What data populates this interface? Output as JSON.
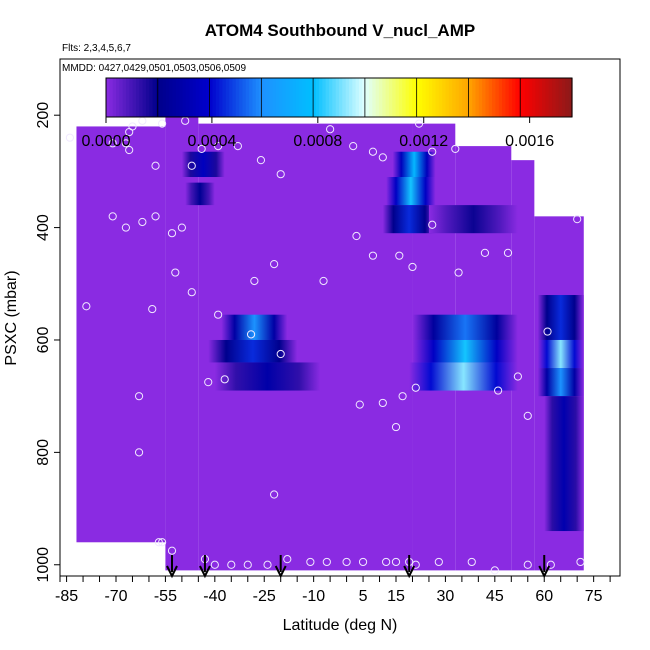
{
  "chart_data": {
    "type": "heatmap",
    "title": "ATOM4 Southbound V_nucl_AMP",
    "flights_note": "Flts: 2,3,4,5,6,7",
    "dates_note": "MMDD: 0427,0429,0501,0503,0506,0509",
    "xlabel": "Latitude (deg N)",
    "ylabel": "PSXC (mbar)",
    "xlim": [
      -87,
      83
    ],
    "ylim": [
      1020,
      100
    ],
    "x_ticks": [
      -85,
      -70,
      -55,
      -40,
      -25,
      -10,
      5,
      15,
      30,
      45,
      60,
      75
    ],
    "x_minor_ticks": [
      -87,
      -80,
      -75,
      -65,
      -60,
      -50,
      -45,
      -35,
      -30,
      -20,
      -15,
      -5,
      0,
      10,
      20,
      25,
      35,
      40,
      50,
      55,
      65,
      70,
      80
    ],
    "y_ticks": [
      200,
      400,
      600,
      800,
      1000
    ],
    "colorbar": {
      "range": [
        0,
        0.00176
      ],
      "tick_values": [
        0.0,
        0.0004,
        0.0008,
        0.0012,
        0.0016
      ],
      "tick_labels": [
        "0.0000",
        "0.0004",
        "0.0008",
        "0.0012",
        "0.0016"
      ],
      "colors": [
        "#8a2be2",
        "#00008b",
        "#0000cd",
        "#1e90ff",
        "#00bfff",
        "#e0ffff",
        "#ffff00",
        "#ffa500",
        "#ff0000",
        "#8b1a1a"
      ]
    },
    "background_level": 0.0,
    "coverage": [
      {
        "lat0": -82,
        "lat1": -55,
        "p0": 220,
        "p1": 960
      },
      {
        "lat0": -55,
        "lat1": -45,
        "p0": 170,
        "p1": 1010
      },
      {
        "lat0": -45,
        "lat1": 20,
        "p0": 215,
        "p1": 1010
      },
      {
        "lat0": 20,
        "lat1": 33,
        "p0": 215,
        "p1": 1010
      },
      {
        "lat0": 33,
        "lat1": 50,
        "p0": 255,
        "p1": 1010
      },
      {
        "lat0": 50,
        "lat1": 57,
        "p0": 280,
        "p1": 1010
      },
      {
        "lat0": 57,
        "lat1": 72,
        "p0": 380,
        "p1": 1010
      }
    ],
    "features": [
      {
        "lat": [
          -50,
          -37
        ],
        "p": [
          265,
          310
        ],
        "value": 0.00035
      },
      {
        "lat": [
          -49,
          -40
        ],
        "p": [
          320,
          360
        ],
        "value": 0.00022
      },
      {
        "lat": [
          -38,
          -18
        ],
        "p": [
          555,
          600
        ],
        "value": 0.0006
      },
      {
        "lat": [
          -42,
          -15
        ],
        "p": [
          600,
          640
        ],
        "value": 0.00045
      },
      {
        "lat": [
          -40,
          -8
        ],
        "p": [
          640,
          690
        ],
        "value": 0.00028
      },
      {
        "lat": [
          14,
          27
        ],
        "p": [
          265,
          310
        ],
        "value": 0.00075
      },
      {
        "lat": [
          12,
          27
        ],
        "p": [
          310,
          360
        ],
        "value": 0.0008
      },
      {
        "lat": [
          11,
          27
        ],
        "p": [
          360,
          410
        ],
        "value": 0.00045
      },
      {
        "lat": [
          25,
          52
        ],
        "p": [
          360,
          410
        ],
        "value": 0.00018
      },
      {
        "lat": [
          20,
          52
        ],
        "p": [
          555,
          600
        ],
        "value": 0.00055
      },
      {
        "lat": [
          20,
          52
        ],
        "p": [
          600,
          640
        ],
        "value": 0.0008
      },
      {
        "lat": [
          19,
          52
        ],
        "p": [
          640,
          690
        ],
        "value": 0.0009
      },
      {
        "lat": [
          58,
          72
        ],
        "p": [
          520,
          600
        ],
        "value": 0.00045
      },
      {
        "lat": [
          58,
          72
        ],
        "p": [
          600,
          650
        ],
        "value": 0.0009
      },
      {
        "lat": [
          58,
          72
        ],
        "p": [
          650,
          700
        ],
        "value": 0.0006
      },
      {
        "lat": [
          60,
          72
        ],
        "p": [
          700,
          940
        ],
        "value": 0.0003
      }
    ],
    "sample_points": [
      [
        -84,
        240
      ],
      [
        -71,
        250
      ],
      [
        -67,
        250
      ],
      [
        -66,
        230
      ],
      [
        -65,
        220
      ],
      [
        -62,
        210
      ],
      [
        -56,
        215
      ],
      [
        -49,
        210
      ],
      [
        -66,
        262
      ],
      [
        -58,
        290
      ],
      [
        -47,
        290
      ],
      [
        -44,
        260
      ],
      [
        -39,
        255
      ],
      [
        -33,
        255
      ],
      [
        -26,
        280
      ],
      [
        -20,
        305
      ],
      [
        -5,
        225
      ],
      [
        2,
        255
      ],
      [
        8,
        265
      ],
      [
        11,
        275
      ],
      [
        22,
        215
      ],
      [
        26,
        265
      ],
      [
        33,
        260
      ],
      [
        -71,
        380
      ],
      [
        -67,
        400
      ],
      [
        -62,
        390
      ],
      [
        -58,
        380
      ],
      [
        -53,
        410
      ],
      [
        -50,
        400
      ],
      [
        -22,
        465
      ],
      [
        -28,
        495
      ],
      [
        -52,
        480
      ],
      [
        -47,
        515
      ],
      [
        -7,
        495
      ],
      [
        3,
        415
      ],
      [
        8,
        450
      ],
      [
        16,
        450
      ],
      [
        20,
        470
      ],
      [
        26,
        395
      ],
      [
        34,
        480
      ],
      [
        42,
        445
      ],
      [
        49,
        445
      ],
      [
        70,
        385
      ],
      [
        -79,
        540
      ],
      [
        -59,
        545
      ],
      [
        -39,
        555
      ],
      [
        -29,
        590
      ],
      [
        -20,
        625
      ],
      [
        -42,
        675
      ],
      [
        -37,
        670
      ],
      [
        -63,
        700
      ],
      [
        -63,
        800
      ],
      [
        4,
        715
      ],
      [
        11,
        712
      ],
      [
        15,
        755
      ],
      [
        17,
        700
      ],
      [
        21,
        685
      ],
      [
        46,
        690
      ],
      [
        52,
        665
      ],
      [
        61,
        585
      ],
      [
        55,
        735
      ],
      [
        -22,
        875
      ],
      [
        -57,
        960
      ],
      [
        -56,
        960
      ],
      [
        -53,
        975
      ],
      [
        -43,
        990
      ],
      [
        -40,
        1000
      ],
      [
        -35,
        1000
      ],
      [
        -30,
        1000
      ],
      [
        -24,
        1000
      ],
      [
        -18,
        990
      ],
      [
        -11,
        995
      ],
      [
        -6,
        995
      ],
      [
        0,
        995
      ],
      [
        5,
        995
      ],
      [
        12,
        995
      ],
      [
        15,
        995
      ],
      [
        19,
        995
      ],
      [
        21,
        1000
      ],
      [
        28,
        995
      ],
      [
        38,
        995
      ],
      [
        45,
        1010
      ],
      [
        55,
        1000
      ],
      [
        62,
        1000
      ],
      [
        71,
        995
      ]
    ],
    "flight_arrows_lat": [
      -53,
      -43,
      -20,
      19,
      60
    ]
  }
}
